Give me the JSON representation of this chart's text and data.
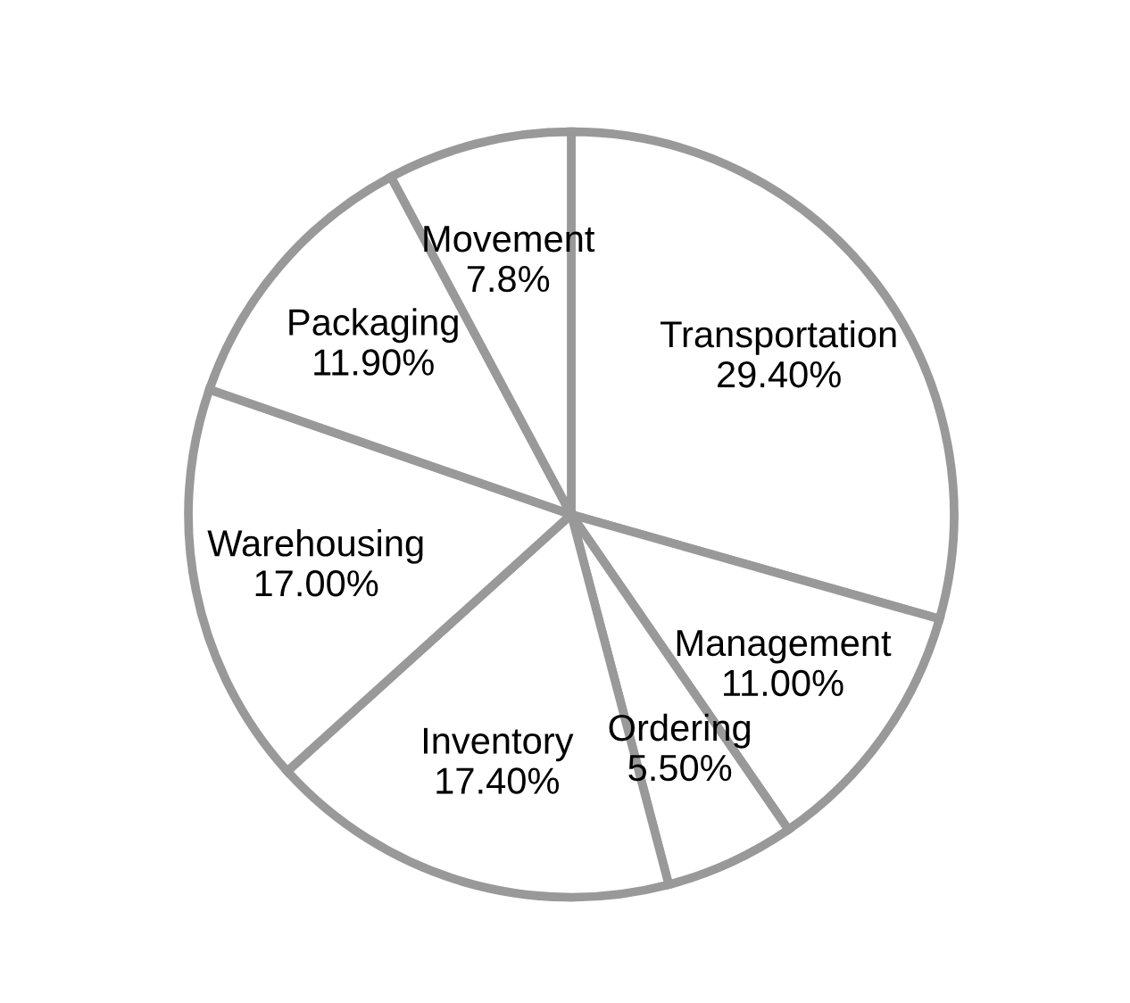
{
  "chart_data": {
    "type": "pie",
    "categories": [
      "Transportation",
      "Management",
      "Ordering",
      "Inventory",
      "Warehousing",
      "Packaging",
      "Movement"
    ],
    "values": [
      29.4,
      11.0,
      5.5,
      17.4,
      17.0,
      11.9,
      7.8
    ],
    "value_labels": [
      "29.40%",
      "11.00%",
      "5.50%",
      "17.40%",
      "17.00%",
      "11.90%",
      "7.8%"
    ],
    "colors": [
      "#ffffff",
      "#ffffff",
      "#ffffff",
      "#ffffff",
      "#ffffff",
      "#ffffff",
      "#ffffff"
    ],
    "legend": false
  }
}
